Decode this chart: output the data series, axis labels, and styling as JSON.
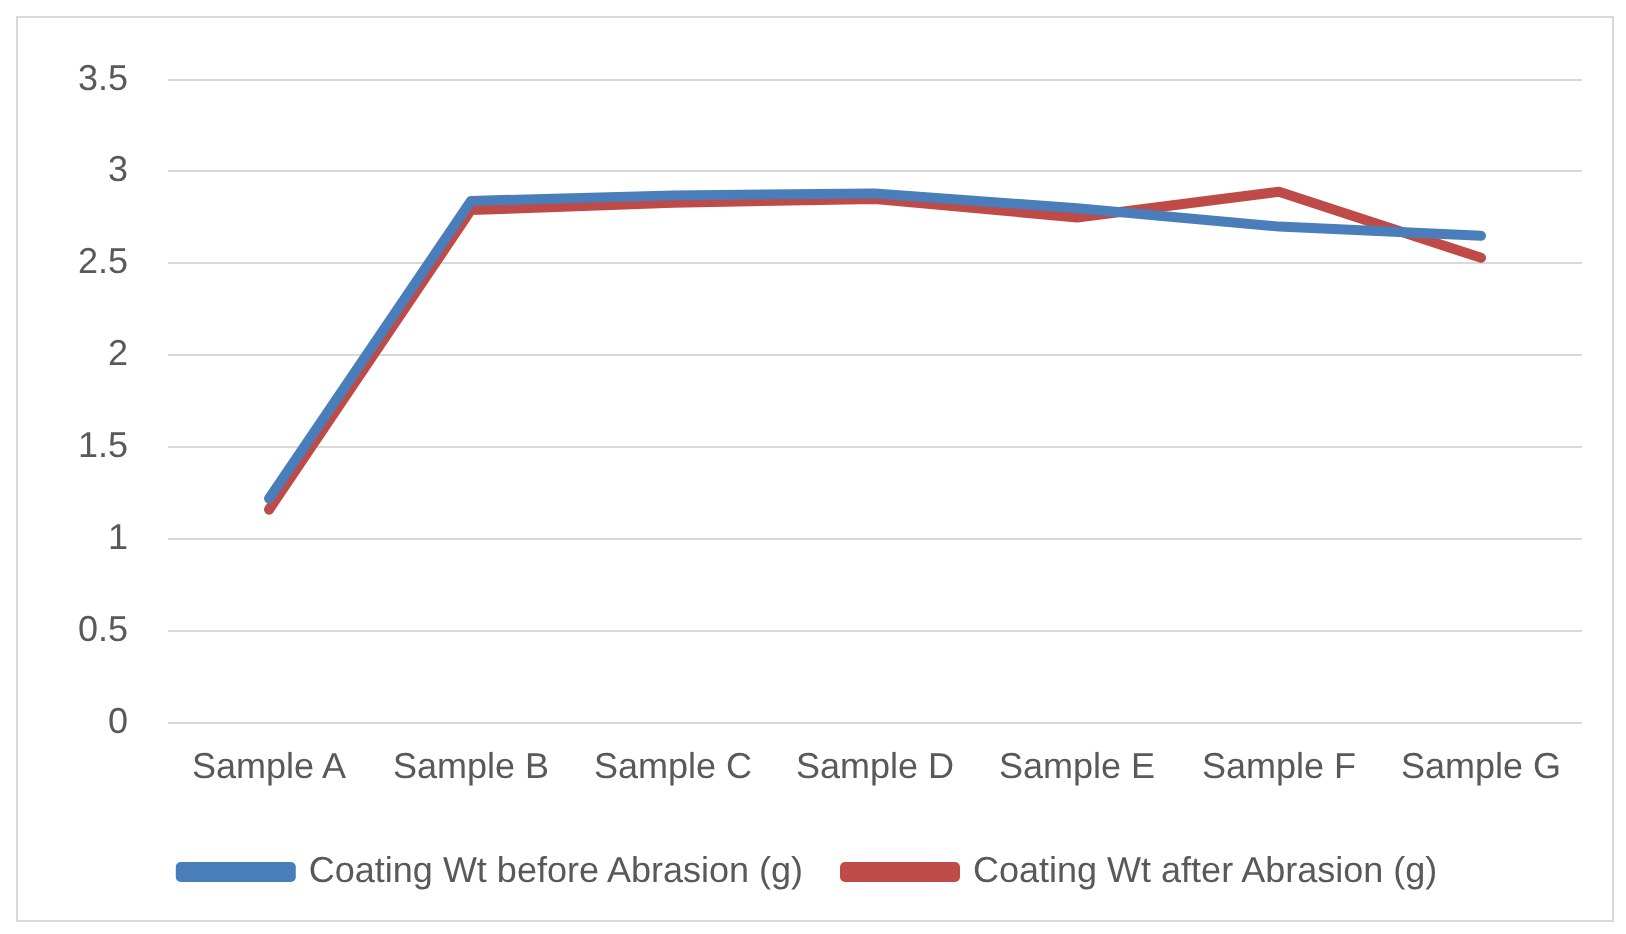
{
  "chart_data": {
    "type": "line",
    "categories": [
      "Sample A",
      "Sample B",
      "Sample C",
      "Sample D",
      "Sample E",
      "Sample F",
      "Sample G"
    ],
    "series": [
      {
        "name": "Coating Wt before Abrasion (g)",
        "color": "#4a7ebb",
        "values": [
          1.22,
          2.84,
          2.87,
          2.88,
          2.8,
          2.7,
          2.65
        ]
      },
      {
        "name": "Coating Wt after Abrasion (g)",
        "color": "#be4b48",
        "values": [
          1.16,
          2.79,
          2.83,
          2.85,
          2.75,
          2.89,
          2.53
        ]
      }
    ],
    "ylim": [
      0,
      3.5
    ],
    "yticks": [
      0,
      0.5,
      1,
      1.5,
      2,
      2.5,
      3,
      3.5
    ],
    "grid": "y",
    "legend": "bottom",
    "marker": "none",
    "line_style": "solid"
  }
}
